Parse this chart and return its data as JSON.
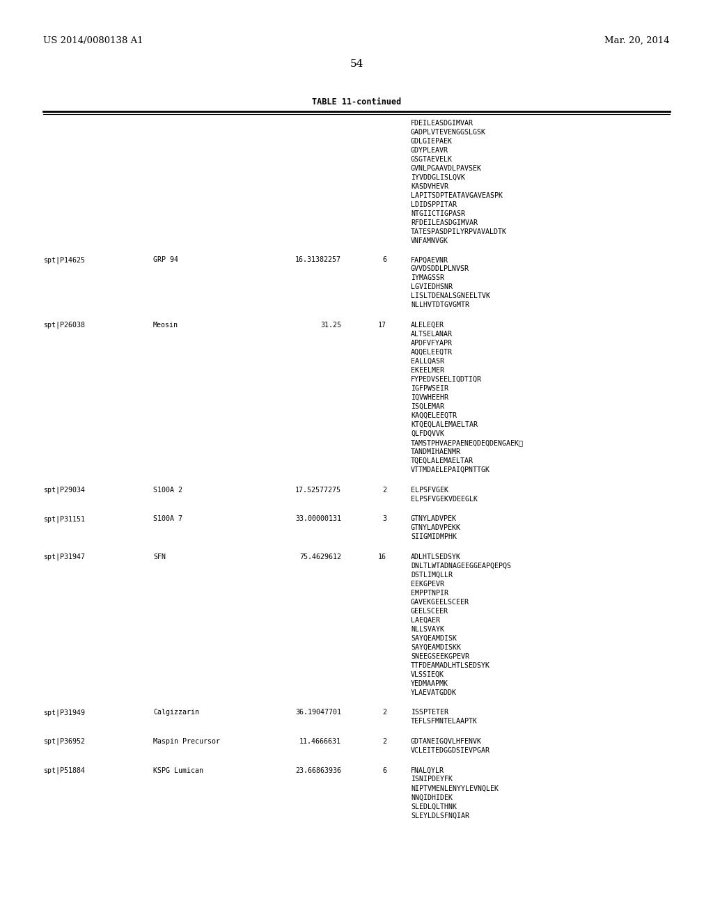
{
  "background_color": "#ffffff",
  "header_left": "US 2014/0080138 A1",
  "header_right": "Mar. 20, 2014",
  "page_number": "54",
  "table_title": "TABLE 11-continued",
  "content": [
    {
      "col1": "",
      "col2": "",
      "col3": "",
      "col4": "",
      "peptides": [
        "FDEILEASDGIMVAR",
        "GADPLVTEVENGGSLGSK",
        "GDLGIEPAEK",
        "GDYPLEAVR",
        "GSGTAEVELK",
        "GVNLPGAAVDLPAVSEK",
        "IYVDDGLISLQVK",
        "KASDVHEVR",
        "LAPITSDPTEATAVGAVEASPK",
        "LDIDSPPITAR",
        "NTGIICTIGPASR",
        "RFDEILEASDGIMVAR",
        "TATESPASDPILYRPVAVALDTK",
        "VNFAMNVGK"
      ]
    },
    {
      "col1": "spt|P14625",
      "col2": "GRP 94",
      "col3": "16.31382257",
      "col4": "6",
      "peptides": [
        "FAPQAEVNR",
        "GVVDSDDLPLNVSR",
        "IYMAGSSR",
        "LGVIEDHSNR",
        "LISLTDENALSGNEELTVK",
        "NLLHVTDTGVGMTR"
      ]
    },
    {
      "col1": "spt|P26038",
      "col2": "Meosin",
      "col3": "31.25",
      "col4": "17",
      "peptides": [
        "ALELEQER",
        "ALTSELANAR",
        "APDFVFYAPR",
        "AQQELEEQTR",
        "EALLQASR",
        "EKEELMER",
        "FYPEDVSEELIQDTIQR",
        "IGFPWSEIR",
        "IQVWHEEHR",
        "ISQLEMAR",
        "KAQQELEEQTR",
        "KTQEQLALEMAELTAR",
        "QLFDQVVK",
        "TAMSTPHVAEPAENEQDEQDENGAEKⓇ",
        "TANDMIHAENMR",
        "TQEQLALEMAELTAR",
        "VTTMDAELEPAIQPNTTGK"
      ]
    },
    {
      "col1": "spt|P29034",
      "col2": "S100A 2",
      "col3": "17.52577275",
      "col4": "2",
      "peptides": [
        "ELPSFVGEK",
        "ELPSFVGEKVDEEGLK"
      ]
    },
    {
      "col1": "spt|P31151",
      "col2": "S100A 7",
      "col3": "33.00000131",
      "col4": "3",
      "peptides": [
        "GTNYLADVPEK",
        "GTNYLADVPEKK",
        "SIIGMIDMPHK"
      ]
    },
    {
      "col1": "spt|P31947",
      "col2": "SFN",
      "col3": "75.4629612",
      "col4": "16",
      "peptides": [
        "ADLHTLSEDSYK",
        "DNLTLWTADNAGEEGGEAPQEPQS",
        "DSTLIMQLLR",
        "EEKGPEVR",
        "EMPPTNPIR",
        "GAVEKGEELSCEER",
        "GEELSCEER",
        "LAEQAER",
        "NLLSVAYK",
        "SAYQEAMDISK",
        "SAYQEAMDISKK",
        "SNEEGSEEKGPEVR",
        "TTFDEAMADLHTLSEDSYK",
        "VLSSIEQK",
        "YEDMAAPMK",
        "YLAEVATGDDK"
      ]
    },
    {
      "col1": "spt|P31949",
      "col2": "Calgizzarin",
      "col3": "36.19047701",
      "col4": "2",
      "peptides": [
        "ISSPTETER",
        "TEFLSFMNTELAAPTK"
      ]
    },
    {
      "col1": "spt|P36952",
      "col2": "Maspin Precursor",
      "col3": "11.4666631",
      "col4": "2",
      "peptides": [
        "GDTANEIGQVLHFENVK",
        "VCLEITEDGGDSIEVPGAR"
      ]
    },
    {
      "col1": "spt|P51884",
      "col2": "KSPG Lumican",
      "col3": "23.66863936",
      "col4": "6",
      "peptides": [
        "FNALQYLR",
        "ISNIPDEYFK",
        "NIPTVMENLENYYLEVNQLEK",
        "NNQIDHIDEK",
        "SLEDLQLTHNK",
        "SLEYLDLSFNQIAR"
      ]
    }
  ]
}
